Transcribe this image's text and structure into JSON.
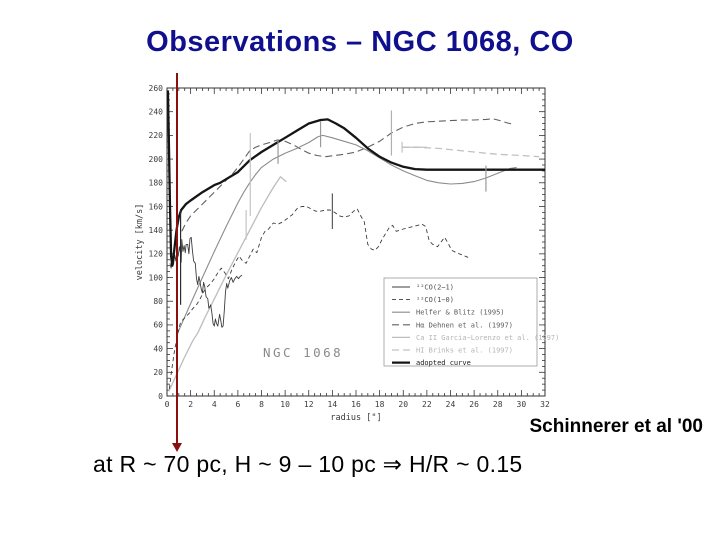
{
  "slide": {
    "title": "Observations – NGC 1068, CO",
    "title_color": "#10108e",
    "credit": "Schinnerer et al '00",
    "formula": "at R ~ 70 pc, H ~ 9 – 10 pc ⇒ H/R ~ 0.15",
    "arrow_color": "#8a1010"
  },
  "chart_data": {
    "type": "line",
    "title": "",
    "inner_label": "NGC 1068",
    "xlabel": "radius [\"]",
    "ylabel": "velocity [km/s]",
    "xlim": [
      0,
      32
    ],
    "ylim": [
      0,
      260
    ],
    "x_major_step": 2,
    "x_minor_step": 0.5,
    "y_major_step": 20,
    "y_minor_step": 5,
    "grid": false,
    "legend_position": "lower right",
    "frame_color": "#333333",
    "tick_label_color": "#3a3a3a",
    "series": [
      {
        "id": "co21",
        "label": "¹²CO(2−1)",
        "color": "#3d3d3d",
        "label_color": "#4d4d4d",
        "dash": "",
        "width": 0.9,
        "points": [
          [
            0.25,
            112
          ],
          [
            0.35,
            108
          ],
          [
            0.45,
            116
          ],
          [
            0.55,
            111
          ],
          [
            0.65,
            119
          ],
          [
            0.75,
            114
          ],
          [
            0.85,
            122
          ],
          [
            0.95,
            118
          ],
          [
            1.05,
            126
          ],
          [
            1.15,
            120
          ],
          [
            1.2,
            113
          ],
          [
            1.25,
            132
          ],
          [
            1.35,
            122
          ],
          [
            1.45,
            127
          ],
          [
            1.55,
            121
          ],
          [
            1.62,
            128
          ],
          [
            1.75,
            128
          ],
          [
            1.85,
            120
          ],
          [
            1.95,
            133
          ],
          [
            2.05,
            134
          ],
          [
            2.15,
            123
          ],
          [
            2.25,
            114
          ],
          [
            2.4,
            112
          ],
          [
            2.5,
            99
          ],
          [
            2.6,
            94
          ],
          [
            2.7,
            101
          ],
          [
            2.8,
            96
          ],
          [
            2.9,
            90
          ],
          [
            3.0,
            87
          ],
          [
            3.1,
            96
          ],
          [
            3.2,
            92
          ],
          [
            3.3,
            84
          ],
          [
            3.45,
            82
          ],
          [
            3.55,
            74
          ],
          [
            3.7,
            77
          ],
          [
            3.8,
            70
          ],
          [
            3.9,
            61
          ],
          [
            4.0,
            59
          ],
          [
            4.1,
            65
          ],
          [
            4.2,
            61
          ],
          [
            4.3,
            59
          ],
          [
            4.45,
            69
          ],
          [
            4.55,
            64
          ],
          [
            4.65,
            58
          ],
          [
            4.75,
            59
          ],
          [
            4.85,
            72
          ],
          [
            4.95,
            88
          ],
          [
            5.05,
            95
          ],
          [
            5.15,
            91
          ],
          [
            5.3,
            97
          ],
          [
            5.45,
            100
          ],
          [
            5.6,
            96
          ],
          [
            5.75,
            99
          ],
          [
            5.9,
            101
          ],
          [
            6.05,
            99
          ],
          [
            6.2,
            101
          ],
          [
            6.35,
            102
          ]
        ]
      },
      {
        "id": "co10",
        "label": "¹²CO(1−0)",
        "color": "#3d3d3d",
        "label_color": "#4d4d4d",
        "dash": "4,3",
        "width": 0.9,
        "points": [
          [
            0.2,
            6
          ],
          [
            0.4,
            22
          ],
          [
            0.6,
            36
          ],
          [
            0.8,
            47
          ],
          [
            1.0,
            57
          ],
          [
            1.15,
            62
          ],
          [
            1.3,
            64
          ],
          [
            1.6,
            67
          ],
          [
            1.9,
            70
          ],
          [
            2.2,
            74
          ],
          [
            2.5,
            77
          ],
          [
            2.8,
            82
          ],
          [
            3.1,
            88
          ],
          [
            3.4,
            92
          ],
          [
            3.7,
            95
          ],
          [
            4.0,
            99
          ],
          [
            4.3,
            104
          ],
          [
            4.6,
            108
          ],
          [
            4.9,
            104
          ],
          [
            5.2,
            99
          ],
          [
            5.5,
            107
          ],
          [
            5.8,
            113
          ],
          [
            6.1,
            118
          ],
          [
            6.4,
            114
          ],
          [
            6.7,
            112
          ],
          [
            7.0,
            118
          ],
          [
            7.3,
            124
          ],
          [
            7.6,
            121
          ],
          [
            8.0,
            134
          ],
          [
            8.3,
            139
          ],
          [
            8.6,
            141
          ],
          [
            9.0,
            146
          ],
          [
            9.4,
            145
          ],
          [
            9.8,
            147
          ],
          [
            10.2,
            150
          ],
          [
            10.6,
            153
          ],
          [
            11.0,
            158
          ],
          [
            11.4,
            160
          ],
          [
            11.8,
            160
          ],
          [
            12.2,
            158
          ],
          [
            12.6,
            156
          ],
          [
            13.0,
            156
          ],
          [
            13.4,
            157
          ],
          [
            13.8,
            157
          ],
          [
            14.2,
            155
          ],
          [
            14.6,
            152
          ],
          [
            15.0,
            151
          ],
          [
            15.4,
            152
          ],
          [
            15.8,
            156
          ],
          [
            16.1,
            158
          ],
          [
            16.4,
            152
          ],
          [
            16.7,
            147
          ],
          [
            17.0,
            128
          ],
          [
            17.3,
            124
          ],
          [
            17.6,
            123
          ],
          [
            17.9,
            126
          ],
          [
            18.2,
            132
          ],
          [
            18.5,
            137
          ],
          [
            18.8,
            142
          ],
          [
            19.1,
            144
          ],
          [
            19.4,
            139
          ],
          [
            19.7,
            140
          ],
          [
            20.0,
            141
          ],
          [
            20.4,
            142
          ],
          [
            20.8,
            143
          ],
          [
            21.2,
            144
          ],
          [
            21.6,
            145
          ],
          [
            21.9,
            143
          ],
          [
            22.2,
            131
          ],
          [
            22.5,
            128
          ],
          [
            22.9,
            126
          ],
          [
            23.2,
            130
          ],
          [
            23.5,
            134
          ],
          [
            23.8,
            129
          ],
          [
            24.1,
            123
          ],
          [
            24.5,
            121
          ],
          [
            25.0,
            119
          ],
          [
            25.5,
            117
          ]
        ]
      },
      {
        "id": "helfer",
        "label": "Helfer & Blitz (1995)",
        "color": "#8c8c8c",
        "label_color": "#5a5a5a",
        "dash": "",
        "width": 1.1,
        "points": [
          [
            0.9,
            53
          ],
          [
            2,
            78
          ],
          [
            3,
            100
          ],
          [
            4,
            122
          ],
          [
            5,
            143
          ],
          [
            6,
            163
          ],
          [
            6.5,
            172
          ],
          [
            7,
            180
          ],
          [
            7.5,
            187
          ],
          [
            8,
            193
          ],
          [
            9,
            200
          ],
          [
            10,
            205
          ],
          [
            11,
            209
          ],
          [
            12,
            214
          ],
          [
            12.8,
            219
          ],
          [
            13.2,
            220
          ],
          [
            14,
            218
          ],
          [
            15,
            215
          ],
          [
            16,
            212
          ],
          [
            17,
            207
          ],
          [
            18,
            201
          ],
          [
            19,
            195
          ],
          [
            20,
            190
          ],
          [
            21,
            186
          ],
          [
            22,
            182
          ],
          [
            23,
            180
          ],
          [
            24,
            179
          ],
          [
            25,
            179.5
          ],
          [
            26,
            181
          ],
          [
            27,
            184
          ],
          [
            28,
            188
          ],
          [
            29,
            192
          ],
          [
            29.6,
            193
          ]
        ]
      },
      {
        "id": "halpha",
        "label": "Hα Dehnen et al. (1997)",
        "color": "#606060",
        "label_color": "#5a5a5a",
        "dash": "7,4",
        "width": 1.1,
        "points": [
          [
            1.25,
            139
          ],
          [
            1.6,
            146
          ],
          [
            2,
            152
          ],
          [
            2.5,
            157
          ],
          [
            3,
            162
          ],
          [
            3.5,
            167
          ],
          [
            4,
            172
          ],
          [
            4.5,
            177
          ],
          [
            5,
            182
          ],
          [
            5.5,
            187
          ],
          [
            6,
            193
          ],
          [
            6.5,
            200
          ],
          [
            7,
            207
          ],
          [
            7.5,
            210
          ],
          [
            8,
            212
          ],
          [
            8.7,
            214
          ],
          [
            9.3,
            216
          ],
          [
            10,
            215
          ],
          [
            10.7,
            212
          ],
          [
            11.4,
            208
          ],
          [
            12,
            205
          ],
          [
            12.7,
            203
          ],
          [
            13.4,
            202
          ],
          [
            14.2,
            203
          ],
          [
            15,
            204
          ],
          [
            16,
            206
          ],
          [
            17,
            210
          ],
          [
            18,
            215
          ],
          [
            19,
            222
          ],
          [
            20,
            227
          ],
          [
            21,
            230
          ],
          [
            22,
            231.5
          ],
          [
            23,
            232
          ],
          [
            24,
            232.5
          ],
          [
            25,
            233
          ],
          [
            26,
            233
          ],
          [
            27,
            233.5
          ],
          [
            27.6,
            234
          ],
          [
            28.2,
            232.5
          ],
          [
            28.8,
            230.5
          ],
          [
            29.4,
            229
          ]
        ]
      },
      {
        "id": "caii",
        "label": "Ca II Garcia−Lorenzo et al. (1997)",
        "color": "#bdbdbd",
        "label_color": "#b5b5b5",
        "dash": "",
        "width": 1.3,
        "points": [
          [
            0.15,
            4
          ],
          [
            0.8,
            18
          ],
          [
            1.5,
            33
          ],
          [
            2.2,
            47
          ],
          [
            2.6,
            53
          ],
          [
            3.2,
            66
          ],
          [
            4,
            82
          ],
          [
            5,
            102
          ],
          [
            6,
            121
          ],
          [
            7,
            140
          ],
          [
            8,
            159
          ],
          [
            9,
            176
          ],
          [
            9.6,
            185
          ],
          [
            10.1,
            181
          ]
        ]
      },
      {
        "id": "hi",
        "label": "HI Brinks et al. (1997)",
        "color": "#c2c2c2",
        "label_color": "#b5b5b5",
        "dash": "7,4",
        "width": 1.3,
        "points": [
          [
            19.9,
            210
          ],
          [
            20.6,
            210
          ],
          [
            21.3,
            210
          ],
          [
            22,
            209.5
          ],
          [
            23,
            209
          ],
          [
            24,
            208
          ],
          [
            25,
            207
          ],
          [
            26,
            206
          ],
          [
            27,
            205
          ],
          [
            28,
            204
          ],
          [
            29,
            203.5
          ],
          [
            30,
            203
          ],
          [
            30.8,
            202.5
          ],
          [
            31.5,
            202
          ]
        ]
      },
      {
        "id": "adopted",
        "label": "adopted curve",
        "color": "#151515",
        "label_color": "#1a1a1a",
        "dash": "",
        "width": 2.3,
        "points": [
          [
            0.08,
            258
          ],
          [
            0.15,
            218
          ],
          [
            0.25,
            160
          ],
          [
            0.35,
            118
          ],
          [
            0.45,
            110
          ],
          [
            0.6,
            122
          ],
          [
            0.8,
            140
          ],
          [
            1.0,
            151
          ],
          [
            1.2,
            157
          ],
          [
            1.6,
            162
          ],
          [
            2,
            165
          ],
          [
            3,
            172
          ],
          [
            4,
            178
          ],
          [
            4.5,
            180
          ],
          [
            5,
            183
          ],
          [
            6,
            189
          ],
          [
            7,
            199
          ],
          [
            8,
            206
          ],
          [
            9,
            212
          ],
          [
            10,
            218
          ],
          [
            11,
            224
          ],
          [
            12,
            230
          ],
          [
            13,
            233
          ],
          [
            13.6,
            233.5
          ],
          [
            14.3,
            230
          ],
          [
            15,
            226
          ],
          [
            16,
            218
          ],
          [
            17,
            209
          ],
          [
            18,
            202
          ],
          [
            19,
            197
          ],
          [
            20,
            193.5
          ],
          [
            21,
            191.5
          ],
          [
            22,
            191
          ],
          [
            24,
            191
          ],
          [
            26,
            191
          ],
          [
            28,
            191
          ],
          [
            30,
            191
          ],
          [
            32,
            191
          ]
        ]
      }
    ],
    "error_bars": [
      {
        "x": 1.15,
        "y1": 77,
        "y2": 157,
        "color": "#2a2a2a"
      },
      {
        "x": 6.7,
        "y1": 132,
        "y2": 157,
        "color": "#c4c4c4"
      },
      {
        "x": 7.05,
        "y1": 152,
        "y2": 222,
        "color": "#c4c4c4"
      },
      {
        "x": 9.4,
        "y1": 196,
        "y2": 217,
        "color": "#9a9a9a"
      },
      {
        "x": 13.0,
        "y1": 210,
        "y2": 232,
        "color": "#9a9a9a"
      },
      {
        "x": 14.0,
        "y1": 141,
        "y2": 171,
        "color": "#5a5a5a"
      },
      {
        "x": 19.0,
        "y1": 203,
        "y2": 241,
        "color": "#b0b0b0"
      },
      {
        "x": 27.0,
        "y1": 172.5,
        "y2": 194.5,
        "color": "#9a9a9a"
      },
      {
        "x": 19.9,
        "y1": 205.5,
        "y2": 214.5,
        "color": "#c0c0c0"
      }
    ],
    "h_error_bar": {
      "y": 210,
      "x1": 19.85,
      "x2": 22.0,
      "color": "#c0c0c0"
    }
  }
}
